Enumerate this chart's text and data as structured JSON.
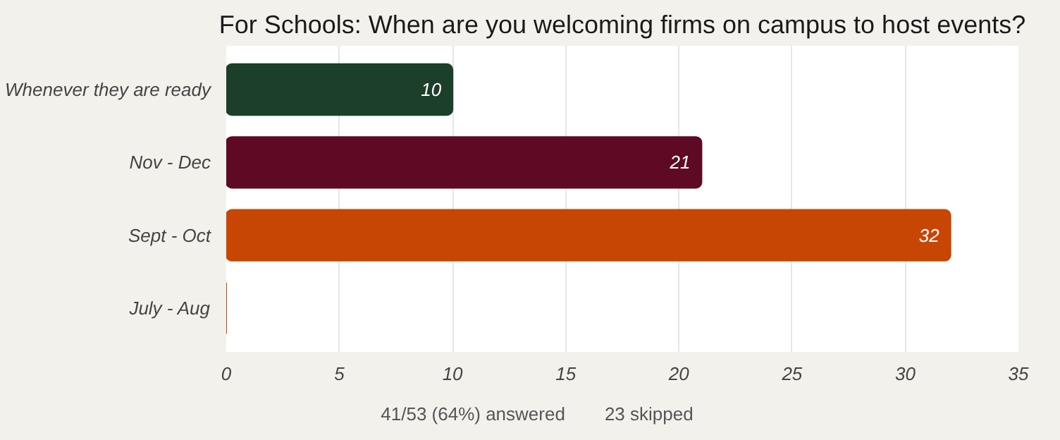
{
  "chart_data": {
    "type": "bar",
    "orientation": "horizontal",
    "title": "For Schools: When are you welcoming firms on campus to host events?",
    "categories": [
      "Whenever they are ready",
      "Nov - Dec",
      "Sept - Oct",
      "July - Aug"
    ],
    "values": [
      10,
      21,
      32,
      0
    ],
    "colors": [
      "#1c3f2a",
      "#5e0a24",
      "#c84603",
      "#c84603"
    ],
    "value_labels": [
      "10",
      "21",
      "32",
      null
    ],
    "xlim": [
      0,
      35
    ],
    "xticks": [
      0,
      5,
      10,
      15,
      20,
      25,
      30,
      35
    ],
    "grid": "x",
    "annotations": [
      "41/53 (64%) answered",
      "23 skipped"
    ]
  }
}
